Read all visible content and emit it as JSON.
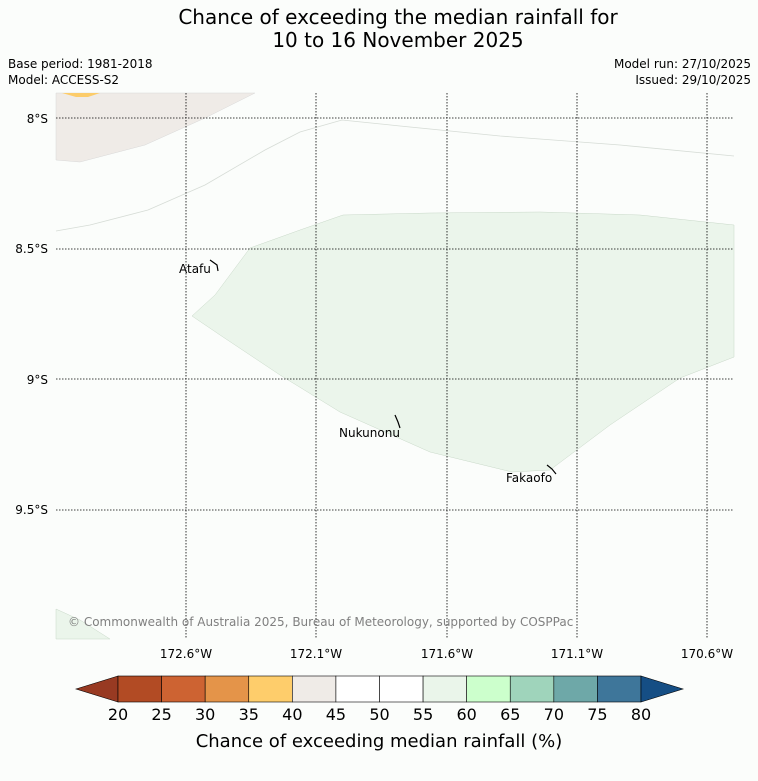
{
  "title": {
    "line1": "Chance of exceeding the median rainfall for",
    "line2": "10 to 16 November 2025"
  },
  "meta": {
    "base_period": "Base period: 1981-2018",
    "model": "Model: ACCESS-S2",
    "model_run": "Model run: 27/10/2025",
    "issued": "Issued: 29/10/2025"
  },
  "map": {
    "latitude_labels": [
      "8°S",
      "8.5°S",
      "9°S",
      "9.5°S"
    ],
    "longitude_labels": [
      "172.6°W",
      "172.1°W",
      "171.6°W",
      "171.1°W",
      "170.6°W"
    ],
    "islands": [
      "Atafu",
      "Nukunonu",
      "Fakaofo"
    ],
    "copyright": "© Commonwealth of Australia 2025, Bureau of Meteorology, supported by COSPPac",
    "region_colors": {
      "light_green": "#ebf5eb",
      "grey": "#efebe7",
      "pale_orange": "#fccc6a"
    }
  },
  "colorbar": {
    "ticks": [
      "20",
      "25",
      "30",
      "35",
      "40",
      "45",
      "50",
      "55",
      "60",
      "65",
      "70",
      "75",
      "80"
    ],
    "colors": [
      "#983a22",
      "#b24b24",
      "#cd6332",
      "#e49449",
      "#fecd6b",
      "#efebe7",
      "#ffffff",
      "#ffffff",
      "#eaf5ea",
      "#ccffcc",
      "#9fd4bb",
      "#6ea8a8",
      "#3e769a",
      "#154e84"
    ],
    "label": "Chance of exceeding median rainfall (%)"
  }
}
